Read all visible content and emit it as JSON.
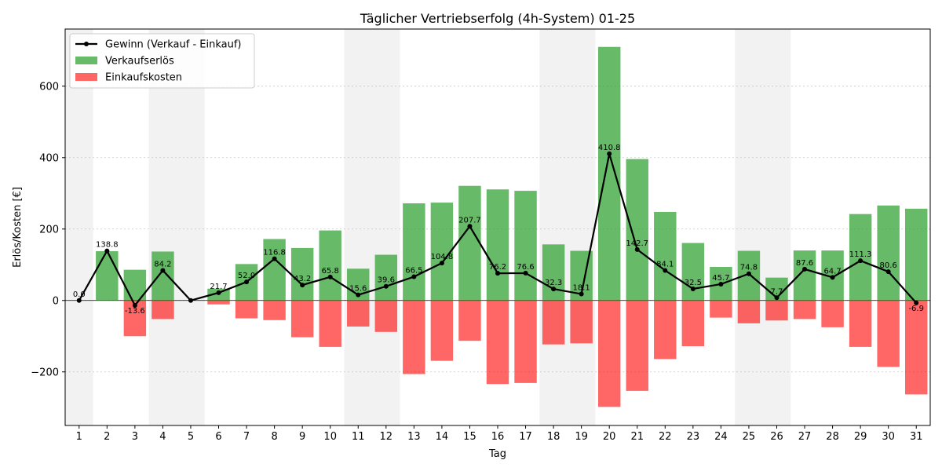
{
  "chart_data": {
    "type": "bar",
    "title": "Täglicher Vertriebserfolg (4h-System) 01-25",
    "xlabel": "Tag",
    "ylabel": "Erlös/Kosten [€]",
    "ylim": [
      -350,
      760
    ],
    "yticks": [
      -200,
      0,
      200,
      400,
      600
    ],
    "grid": "y",
    "legend_position": "top-left",
    "categories": [
      "1",
      "2",
      "3",
      "4",
      "5",
      "6",
      "7",
      "8",
      "9",
      "10",
      "11",
      "12",
      "13",
      "14",
      "15",
      "16",
      "17",
      "18",
      "19",
      "20",
      "21",
      "22",
      "23",
      "24",
      "25",
      "26",
      "27",
      "28",
      "29",
      "30",
      "31"
    ],
    "weekend_days": [
      "1",
      "4",
      "5",
      "11",
      "12",
      "18",
      "19",
      "25",
      "26"
    ],
    "series": [
      {
        "name": "Gewinn (Verkauf - Einkauf)",
        "kind": "line",
        "color": "#000000",
        "values": [
          0.0,
          138.8,
          -13.6,
          84.2,
          0.0,
          21.7,
          52.0,
          116.8,
          43.2,
          65.8,
          15.6,
          39.6,
          66.5,
          104.8,
          207.7,
          76.2,
          76.6,
          32.3,
          18.1,
          410.8,
          142.7,
          84.1,
          32.5,
          45.7,
          74.8,
          7.7,
          87.6,
          64.7,
          111.3,
          80.6,
          -6.9
        ],
        "labels": [
          "0.0",
          "138.8",
          "-13.6",
          "84.2",
          "",
          "21.7",
          "52.0",
          "116.8",
          "43.2",
          "65.8",
          "15.6",
          "39.6",
          "66.5",
          "104.8",
          "207.7",
          "76.2",
          "76.6",
          "32.3",
          "18.1",
          "410.8",
          "142.7",
          "84.1",
          "32.5",
          "45.7",
          "74.8",
          "7.7",
          "87.6",
          "64.7",
          "111.3",
          "80.6",
          "-6.9"
        ]
      },
      {
        "name": "Verkaufserlös",
        "kind": "bar",
        "color": "#2ca02c",
        "values": [
          0,
          138,
          86,
          137,
          0,
          33,
          102,
          172,
          147,
          196,
          89,
          128,
          272,
          274,
          321,
          311,
          307,
          157,
          139,
          710,
          396,
          248,
          161,
          94,
          139,
          64,
          140,
          140,
          242,
          266,
          257
        ]
      },
      {
        "name": "Einkaufskosten",
        "kind": "bar",
        "color": "#ff0000",
        "values": [
          0,
          0,
          -100,
          -52,
          0,
          -11,
          -50,
          -55,
          -103,
          -130,
          -73,
          -88,
          -206,
          -169,
          -113,
          -234,
          -231,
          -123,
          -120,
          -298,
          -253,
          -164,
          -128,
          -48,
          -64,
          -56,
          -52,
          -75,
          -130,
          -186,
          -263
        ]
      }
    ]
  }
}
